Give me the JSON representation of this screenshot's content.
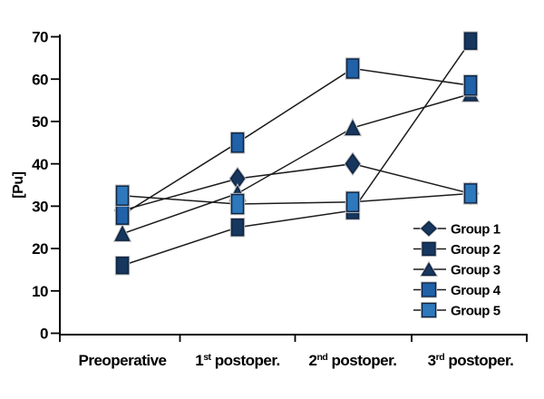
{
  "chart_data": {
    "type": "line",
    "title": "",
    "xlabel": "",
    "ylabel": "[Pu]",
    "ylim": [
      0,
      70
    ],
    "ytick_step": 10,
    "yticks": [
      0,
      10,
      20,
      30,
      40,
      50,
      60,
      70
    ],
    "grid": false,
    "legend_position": "inside bottom-right",
    "categories": [
      "Preoperative",
      "1st postoper.",
      "2nd postoper.",
      "3rd postoper."
    ],
    "series": [
      {
        "name": "Group 1",
        "marker": "diamond",
        "color": "#17375E",
        "values": [
          29,
          36.5,
          40,
          33
        ]
      },
      {
        "name": "Group 2",
        "marker": "square-small",
        "color": "#17375E",
        "values": [
          16,
          25,
          29,
          69
        ]
      },
      {
        "name": "Group 3",
        "marker": "triangle",
        "color": "#17375E",
        "values": [
          23.5,
          33,
          48.5,
          56.5
        ]
      },
      {
        "name": "Group 4",
        "marker": "square",
        "color": "#2061A8",
        "values": [
          28,
          45,
          62.5,
          58.5
        ]
      },
      {
        "name": "Group 5",
        "marker": "square",
        "color": "#2E78BC",
        "values": [
          32.5,
          30.5,
          31,
          33
        ]
      }
    ],
    "colors": {
      "line": "#1c1c1c",
      "axis": "#000000",
      "text": "#000000",
      "marker_border": "#0e2342",
      "marker_halo": "#bdbdbd",
      "background": "#ffffff"
    }
  }
}
